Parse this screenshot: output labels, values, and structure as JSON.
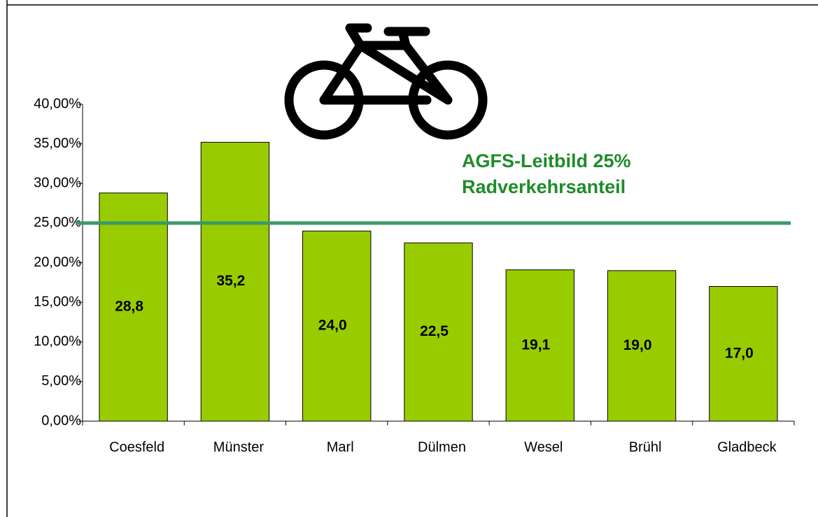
{
  "chart_data": {
    "type": "bar",
    "categories": [
      "Coesfeld",
      "Münster",
      "Marl",
      "Dülmen",
      "Wesel",
      "Brühl",
      "Gladbeck"
    ],
    "values": [
      28.8,
      35.2,
      24.0,
      22.5,
      19.1,
      19.0,
      17.0
    ],
    "value_labels": [
      "28,8",
      "35,2",
      "24,0",
      "22,5",
      "19,1",
      "19,0",
      "17,0"
    ],
    "color": "#99cc00",
    "ylim": [
      0,
      40
    ],
    "yticks": [
      {
        "value": 0,
        "label": "0,00%"
      },
      {
        "value": 5,
        "label": "5,00%"
      },
      {
        "value": 10,
        "label": "10,00%"
      },
      {
        "value": 15,
        "label": "15,00%"
      },
      {
        "value": 20,
        "label": "20,00%"
      },
      {
        "value": 25,
        "label": "25,00%"
      },
      {
        "value": 30,
        "label": "30,00%"
      },
      {
        "value": 35,
        "label": "35,00%"
      },
      {
        "value": 40,
        "label": "40,00%"
      }
    ],
    "reference_line": {
      "value": 25,
      "color": "#3a9a6a",
      "annotation": [
        "AGFS-Leitbild 25%",
        "Radverkehrsanteil"
      ]
    }
  }
}
